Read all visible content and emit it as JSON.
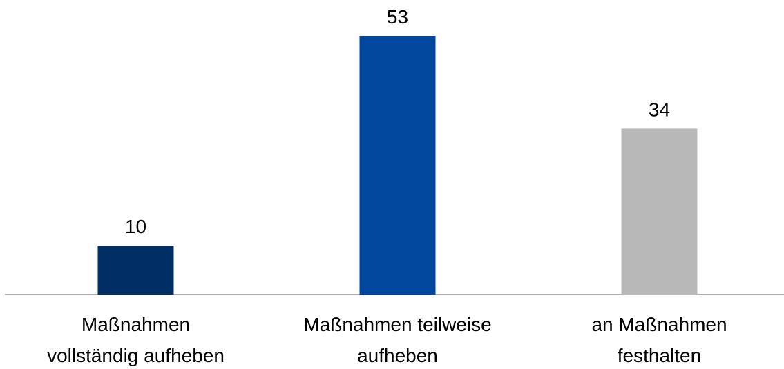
{
  "chart_data": {
    "type": "bar",
    "categories": [
      "Maßnahmen\nvollständig aufheben",
      "Maßnahmen teilweise\naufheben",
      "an Maßnahmen\nfesthalten"
    ],
    "values": [
      10,
      53,
      34
    ],
    "colors": [
      "#002f66",
      "#00479d",
      "#b8b8b8"
    ]
  }
}
